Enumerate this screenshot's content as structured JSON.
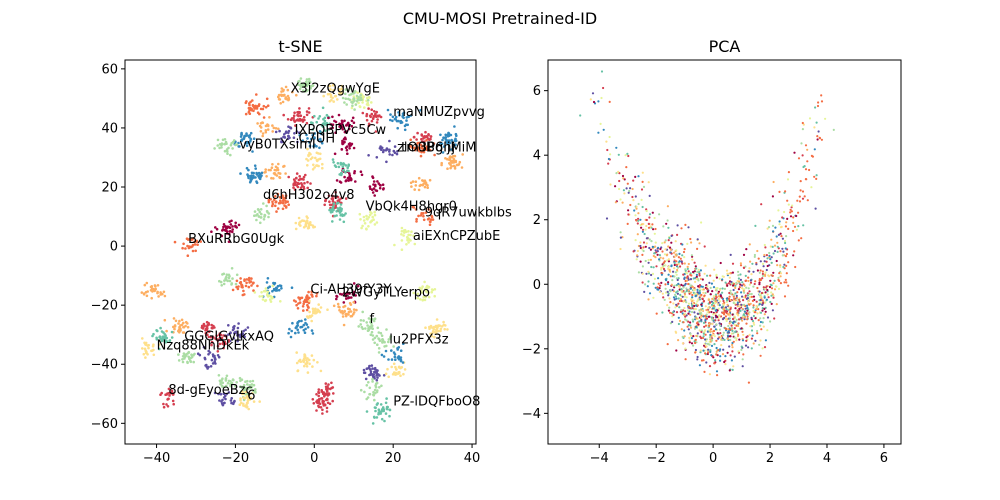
{
  "figure": {
    "title": "CMU-MOSI Pretrained-ID"
  },
  "palette": [
    "#9e0142",
    "#d53e4f",
    "#f46d43",
    "#fdae61",
    "#fee08b",
    "#e6f598",
    "#abdda4",
    "#66c2a5",
    "#3288bd",
    "#5e4fa2"
  ],
  "chart_data": [
    {
      "type": "scatter",
      "title": "t-SNE",
      "xlim": [
        -48,
        41
      ],
      "ylim": [
        -67,
        63
      ],
      "xticks": [
        -40,
        -20,
        0,
        20,
        40
      ],
      "yticks": [
        -60,
        -40,
        -20,
        0,
        20,
        40,
        60
      ],
      "xtick_labels": [
        "−40",
        "−20",
        "0",
        "20",
        "40"
      ],
      "ytick_labels": [
        "−60",
        "−40",
        "−20",
        "0",
        "20",
        "40",
        "60"
      ],
      "grid": false,
      "clusters": [
        {
          "x": -2,
          "y": 55,
          "c": 6
        },
        {
          "x": 5,
          "y": 52,
          "c": 4
        },
        {
          "x": -8,
          "y": 51,
          "c": 3
        },
        {
          "x": 12,
          "y": 49,
          "c": 5
        },
        {
          "x": -15,
          "y": 47,
          "c": 2
        },
        {
          "x": 15,
          "y": 44,
          "c": 1
        },
        {
          "x": 22,
          "y": 43,
          "c": 8
        },
        {
          "x": -4,
          "y": 44,
          "c": 1
        },
        {
          "x": 2,
          "y": 42,
          "c": 7
        },
        {
          "x": 7,
          "y": 41,
          "c": 0
        },
        {
          "x": -12,
          "y": 40,
          "c": 3
        },
        {
          "x": 28,
          "y": 37,
          "c": 1
        },
        {
          "x": 34,
          "y": 36,
          "c": 8
        },
        {
          "x": -18,
          "y": 36,
          "c": 8
        },
        {
          "x": -22,
          "y": 34,
          "c": 6
        },
        {
          "x": 0,
          "y": 36,
          "c": 8
        },
        {
          "x": 8,
          "y": 34,
          "c": 0
        },
        {
          "x": 19,
          "y": 32,
          "c": 9
        },
        {
          "x": 27,
          "y": 33,
          "c": 2
        },
        {
          "x": 35,
          "y": 28,
          "c": 3
        },
        {
          "x": 0,
          "y": 29,
          "c": 4
        },
        {
          "x": -15,
          "y": 24,
          "c": 8
        },
        {
          "x": -10,
          "y": 25,
          "c": 3
        },
        {
          "x": 9,
          "y": 24,
          "c": 0
        },
        {
          "x": 16,
          "y": 20,
          "c": 0
        },
        {
          "x": -4,
          "y": 21,
          "c": 1
        },
        {
          "x": 27,
          "y": 21,
          "c": 3
        },
        {
          "x": -9,
          "y": 15,
          "c": 2
        },
        {
          "x": 5,
          "y": 15,
          "c": 1
        },
        {
          "x": -14,
          "y": 11,
          "c": 6
        },
        {
          "x": 6,
          "y": 12,
          "c": 7
        },
        {
          "x": 14,
          "y": 9,
          "c": 5
        },
        {
          "x": 28,
          "y": 10,
          "c": 2
        },
        {
          "x": -22,
          "y": 6,
          "c": 0
        },
        {
          "x": -2,
          "y": 7,
          "c": 4
        },
        {
          "x": 24,
          "y": 3,
          "c": 5
        },
        {
          "x": -31,
          "y": 0,
          "c": 2
        },
        {
          "x": -41,
          "y": -15,
          "c": 3
        },
        {
          "x": -22,
          "y": -11,
          "c": 6
        },
        {
          "x": -18,
          "y": -13,
          "c": 2
        },
        {
          "x": -10,
          "y": -14,
          "c": 8
        },
        {
          "x": -12,
          "y": -17,
          "c": 5
        },
        {
          "x": -2,
          "y": -18,
          "c": 2
        },
        {
          "x": 9,
          "y": -17,
          "c": 0
        },
        {
          "x": 28,
          "y": -15,
          "c": 5
        },
        {
          "x": 0,
          "y": -22,
          "c": 4
        },
        {
          "x": 8,
          "y": -22,
          "c": 3
        },
        {
          "x": -34,
          "y": -27,
          "c": 3
        },
        {
          "x": -27,
          "y": -28,
          "c": 1
        },
        {
          "x": -38,
          "y": -31,
          "c": 7
        },
        {
          "x": -20,
          "y": -30,
          "c": 9
        },
        {
          "x": -4,
          "y": -28,
          "c": 8
        },
        {
          "x": 14,
          "y": -27,
          "c": 6
        },
        {
          "x": 31,
          "y": -28,
          "c": 4
        },
        {
          "x": -42,
          "y": -35,
          "c": 4
        },
        {
          "x": -24,
          "y": -32,
          "c": 1
        },
        {
          "x": 17,
          "y": -32,
          "c": 6
        },
        {
          "x": -32,
          "y": -38,
          "c": 6
        },
        {
          "x": -26,
          "y": -38,
          "c": 9
        },
        {
          "x": -2,
          "y": -39,
          "c": 4
        },
        {
          "x": 15,
          "y": -43,
          "c": 9
        },
        {
          "x": 21,
          "y": -42,
          "c": 4
        },
        {
          "x": -22,
          "y": -46,
          "c": 6
        },
        {
          "x": -17,
          "y": -48,
          "c": 6
        },
        {
          "x": 3,
          "y": -49,
          "c": 1
        },
        {
          "x": 15,
          "y": -49,
          "c": 6
        },
        {
          "x": -37,
          "y": -51,
          "c": 1
        },
        {
          "x": -22,
          "y": -52,
          "c": 9
        },
        {
          "x": -17,
          "y": -52,
          "c": 4
        },
        {
          "x": 2,
          "y": -53,
          "c": 1
        },
        {
          "x": 17,
          "y": -56,
          "c": 7
        },
        {
          "x": 10,
          "y": 50,
          "c": 6
        },
        {
          "x": -6,
          "y": 38,
          "c": 9
        },
        {
          "x": 21,
          "y": -38,
          "c": 8
        },
        {
          "x": 7,
          "y": 27,
          "c": 7
        }
      ],
      "annotations": [
        {
          "text": "X3j2zQgwYgE",
          "x": -6,
          "y": 52
        },
        {
          "text": "maNMUZpvvg",
          "x": 20,
          "y": 44
        },
        {
          "text": "IXPQBPVc5Cw",
          "x": -5,
          "y": 38
        },
        {
          "text": "C7UH",
          "x": -4,
          "y": 35
        },
        {
          "text": "vyB0TXsimI",
          "x": -19,
          "y": 33
        },
        {
          "text": "zlO0Bghj",
          "x": 21,
          "y": 32
        },
        {
          "text": "tm3P6ljMiM",
          "x": 22,
          "y": 32
        },
        {
          "text": "d6hH302o4v8",
          "x": -13,
          "y": 16
        },
        {
          "text": "VbQk4H8hgr0",
          "x": 13,
          "y": 12
        },
        {
          "text": "9qR7uwkblbs",
          "x": 28,
          "y": 10
        },
        {
          "text": "aiEXnCPZubE",
          "x": 25,
          "y": 2
        },
        {
          "text": "BXuRRbG0Ugk",
          "x": -32,
          "y": 1
        },
        {
          "text": "Ci-AH39fY3Y",
          "x": -1,
          "y": -16
        },
        {
          "text": "2WGyTLYerpo",
          "x": 7,
          "y": -17
        },
        {
          "text": "f",
          "x": 14,
          "y": -26
        },
        {
          "text": "lu2PFX3z",
          "x": 19,
          "y": -33
        },
        {
          "text": "GGGIGvIkxAQ",
          "x": -33,
          "y": -32
        },
        {
          "text": "Nzq88NhDkEk",
          "x": -40,
          "y": -35
        },
        {
          "text": "8d-gEyoeBzc",
          "x": -37,
          "y": -50
        },
        {
          "text": "6",
          "x": -17,
          "y": -52
        },
        {
          "text": "PZ-lDQFboO8",
          "x": 20,
          "y": -54
        }
      ]
    },
    {
      "type": "scatter",
      "title": "PCA",
      "xlim": [
        -5.8,
        6.6
      ],
      "ylim": [
        -4.95,
        6.95
      ],
      "xticks": [
        -4,
        -2,
        0,
        2,
        4,
        6
      ],
      "yticks": [
        -4,
        -2,
        0,
        2,
        4,
        6
      ],
      "xtick_labels": [
        "−4",
        "−2",
        "0",
        "2",
        "4",
        "6"
      ],
      "ytick_labels": [
        "−4",
        "−2",
        "0",
        "2",
        "4",
        "6"
      ],
      "grid": false,
      "distribution": "V-shaped cloud centred near (0, -1) with arms to (-5, 3) and (5, 6)"
    }
  ]
}
